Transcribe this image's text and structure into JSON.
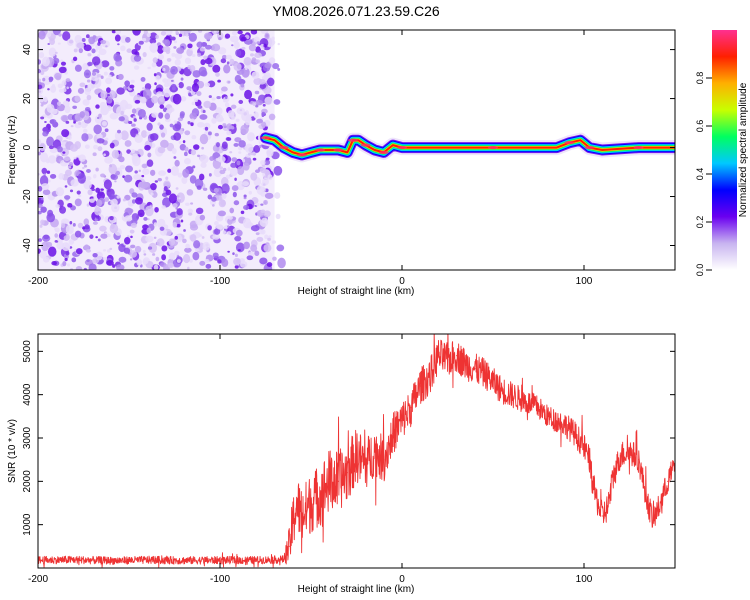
{
  "chart_data": [
    {
      "type": "heatmap",
      "title": "YM08.2026.071.23.59.C26",
      "xlabel": "Height of straight line (km)",
      "ylabel": "Frequency (Hz)",
      "xlim": [
        -200,
        150
      ],
      "ylim": [
        -50,
        48
      ],
      "x_ticks": [
        -200,
        -100,
        0,
        100
      ],
      "x_tick_labels": [
        "-200",
        "-100",
        "0",
        "100"
      ],
      "y_ticks": [
        -40,
        -20,
        0,
        20,
        40
      ],
      "y_tick_labels": [
        "-40",
        "-20",
        "0",
        "20",
        "40"
      ],
      "noise_region_km": [
        -200,
        -70
      ],
      "signal_track_freq_hz": [
        {
          "x": -75,
          "f": 4
        },
        {
          "x": -70,
          "f": 3
        },
        {
          "x": -65,
          "f": 0
        },
        {
          "x": -60,
          "f": -2
        },
        {
          "x": -55,
          "f": -3
        },
        {
          "x": -50,
          "f": -2
        },
        {
          "x": -45,
          "f": -1
        },
        {
          "x": -40,
          "f": -1
        },
        {
          "x": -35,
          "f": -1
        },
        {
          "x": -30,
          "f": -2
        },
        {
          "x": -27,
          "f": 3
        },
        {
          "x": -24,
          "f": 3
        },
        {
          "x": -20,
          "f": 1
        },
        {
          "x": -15,
          "f": -1
        },
        {
          "x": -10,
          "f": -2
        },
        {
          "x": -5,
          "f": 1
        },
        {
          "x": 0,
          "f": 0
        },
        {
          "x": 20,
          "f": 0
        },
        {
          "x": 50,
          "f": 0
        },
        {
          "x": 85,
          "f": 0
        },
        {
          "x": 92,
          "f": 2
        },
        {
          "x": 98,
          "f": 3
        },
        {
          "x": 103,
          "f": 0
        },
        {
          "x": 110,
          "f": -1
        },
        {
          "x": 130,
          "f": 0
        },
        {
          "x": 150,
          "f": 0
        }
      ],
      "colorbar": {
        "label": "Normalized spectral amplitude",
        "range": [
          0,
          1
        ],
        "ticks": [
          0.0,
          0.2,
          0.4,
          0.6,
          0.8
        ],
        "tick_labels": [
          "0.0",
          "0.2",
          "0.4",
          "0.6",
          "0.8"
        ],
        "colors": [
          "#ffffff",
          "#c8b4f0",
          "#6a00f0",
          "#0000ff",
          "#00c8ff",
          "#00ff60",
          "#c8ff00",
          "#ffb000",
          "#ff2000",
          "#ff3090"
        ]
      }
    },
    {
      "type": "line",
      "title": "",
      "xlabel": "Height of straight line (km)",
      "ylabel": "SNR (10 * v/v)",
      "xlim": [
        -200,
        150
      ],
      "ylim": [
        0,
        5400
      ],
      "x_ticks": [
        -200,
        -100,
        0,
        100
      ],
      "x_tick_labels": [
        "-200",
        "-100",
        "0",
        "100"
      ],
      "y_ticks": [
        1000,
        2000,
        3000,
        4000,
        5000
      ],
      "y_tick_labels": [
        "1000",
        "2000",
        "3000",
        "4000",
        "5000"
      ],
      "color": "#ee3333",
      "series": [
        {
          "name": "SNR",
          "x": [
            -200,
            -180,
            -160,
            -140,
            -120,
            -100,
            -80,
            -65,
            -62,
            -58,
            -55,
            -50,
            -45,
            -40,
            -35,
            -30,
            -25,
            -20,
            -15,
            -10,
            -5,
            0,
            5,
            10,
            15,
            20,
            25,
            30,
            35,
            40,
            45,
            50,
            55,
            60,
            65,
            70,
            75,
            80,
            85,
            90,
            95,
            100,
            103,
            106,
            110,
            113,
            116,
            120,
            125,
            130,
            135,
            138,
            142,
            146,
            150
          ],
          "y": [
            180,
            190,
            170,
            185,
            175,
            180,
            180,
            200,
            500,
            1500,
            1200,
            1500,
            1700,
            2000,
            2000,
            2200,
            2600,
            2400,
            2700,
            2500,
            3100,
            3400,
            3700,
            4200,
            4400,
            4900,
            4800,
            4900,
            4700,
            4600,
            4500,
            4300,
            4100,
            4000,
            3900,
            3800,
            3700,
            3500,
            3400,
            3300,
            3100,
            2800,
            2500,
            1700,
            1200,
            1400,
            2100,
            2600,
            2700,
            2500,
            1500,
            1100,
            1500,
            2000,
            2400
          ]
        }
      ],
      "noise_amplitude": [
        {
          "x": -200,
          "amp": 90
        },
        {
          "x": -65,
          "amp": 90
        },
        {
          "x": -60,
          "amp": 650
        },
        {
          "x": -40,
          "amp": 750
        },
        {
          "x": -20,
          "amp": 600
        },
        {
          "x": 0,
          "amp": 450
        },
        {
          "x": 30,
          "amp": 380
        },
        {
          "x": 80,
          "amp": 260
        },
        {
          "x": 110,
          "amp": 330
        },
        {
          "x": 150,
          "amp": 280
        }
      ]
    }
  ]
}
